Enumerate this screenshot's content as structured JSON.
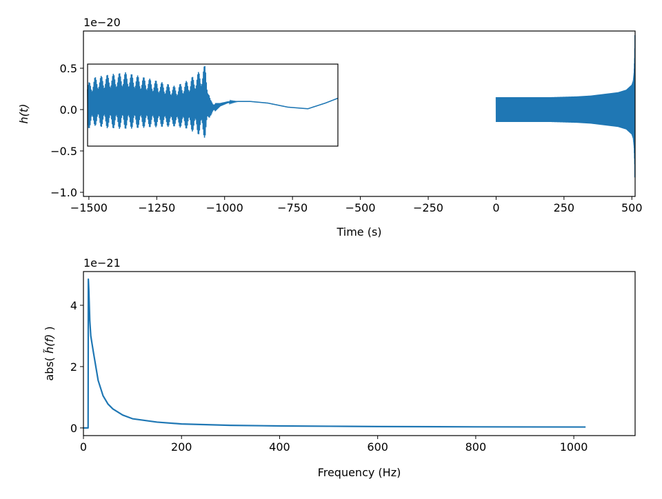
{
  "chart_data": [
    {
      "type": "line",
      "xlabel": "Time (s)",
      "ylabel_math": "h(t)",
      "offset_text": "1e−20",
      "xlim": [
        -1520,
        512
      ],
      "ylim": [
        -1.05,
        0.95
      ],
      "xticks": [
        -1500,
        -1250,
        -1000,
        -750,
        -500,
        -250,
        0,
        250,
        500
      ],
      "xtick_labels": [
        "−1500",
        "−1250",
        "−1000",
        "−750",
        "−500",
        "−250",
        "0",
        "250",
        "500"
      ],
      "yticks": [
        -1.0,
        -0.5,
        0.0,
        0.5
      ],
      "ytick_labels": [
        "−1.0",
        "−0.5",
        "0.0",
        "0.5"
      ],
      "color": "#1f77b4",
      "grid": false,
      "series": [
        {
          "x": [
            0,
            100,
            200,
            300,
            350,
            400,
            450,
            480,
            500,
            505,
            508,
            510,
            511
          ],
          "envelope": [
            0.15,
            0.15,
            0.15,
            0.16,
            0.17,
            0.19,
            0.21,
            0.24,
            0.3,
            0.35,
            0.45,
            0.65,
            0.9
          ]
        }
      ],
      "inset": {
        "xlim": [
          0,
          100
        ],
        "ylim": [
          -0.45,
          0.56
        ],
        "series": [
          {
            "x": [
              0,
              3,
              8,
              15,
              25,
              35,
              40,
              45,
              47,
              49,
              51,
              53,
              56,
              60,
              65,
              72,
              80,
              88,
              95,
              100
            ],
            "y": [
              0.04,
              0.1,
              0.1,
              0.11,
              0.08,
              0.04,
              0.06,
              0.08,
              0.1,
              0.02,
              0.03,
              0.06,
              0.09,
              0.1,
              0.1,
              0.08,
              0.03,
              0.01,
              0.08,
              0.14
            ],
            "envelope": [
              0.28,
              0.3,
              0.33,
              0.35,
              0.3,
              0.25,
              0.3,
              0.4,
              0.45,
              0.1,
              0.05,
              0.02,
              0.01,
              0,
              0,
              0,
              0,
              0,
              0,
              0
            ]
          }
        ]
      }
    },
    {
      "type": "line",
      "xlabel": "Frequency (Hz)",
      "ylabel_parts": {
        "prefix": "abs( ",
        "math": "h̃(f)",
        "suffix": " )"
      },
      "offset_text": "1e−21",
      "xlim": [
        0,
        1125
      ],
      "ylim": [
        -0.25,
        5.1
      ],
      "xticks": [
        0,
        200,
        400,
        600,
        800,
        1000
      ],
      "xtick_labels": [
        "0",
        "200",
        "400",
        "600",
        "800",
        "1000"
      ],
      "yticks": [
        0,
        2,
        4
      ],
      "ytick_labels": [
        "0",
        "2",
        "4"
      ],
      "color": "#1f77b4",
      "grid": false,
      "series": [
        {
          "x": [
            0,
            9.5,
            10,
            11,
            13,
            15,
            20,
            30,
            40,
            50,
            60,
            80,
            100,
            150,
            200,
            300,
            400,
            500,
            600,
            800,
            1024
          ],
          "y": [
            0,
            0,
            4.85,
            4.5,
            3.5,
            3.0,
            2.5,
            1.55,
            1.05,
            0.78,
            0.62,
            0.42,
            0.3,
            0.19,
            0.13,
            0.085,
            0.065,
            0.055,
            0.045,
            0.035,
            0.03
          ]
        }
      ]
    }
  ]
}
